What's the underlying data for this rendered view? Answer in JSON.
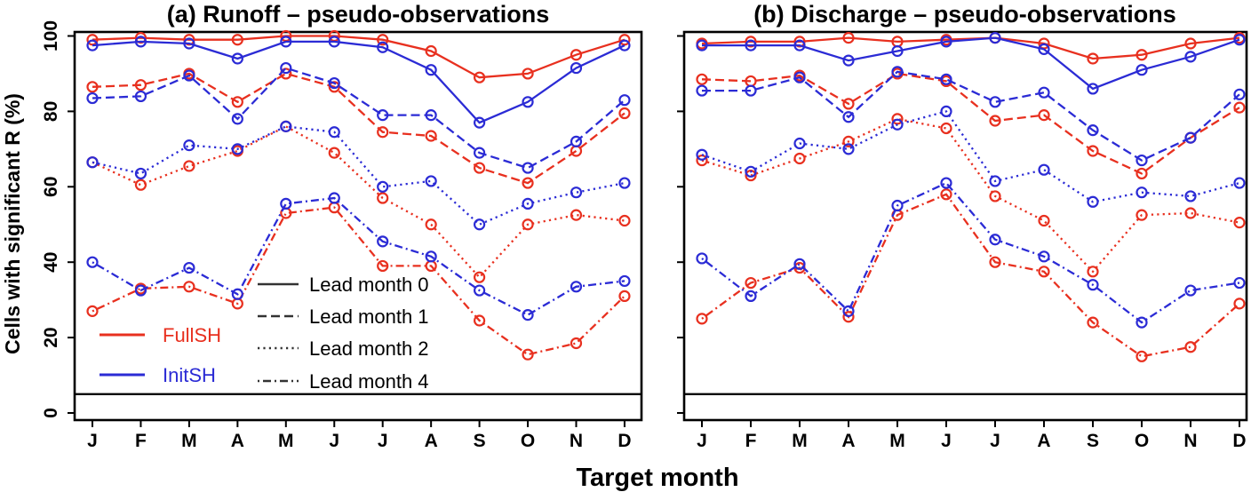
{
  "figure": {
    "y_axis_label": "Cells with significant R (%)",
    "x_axis_label": "Target month",
    "colors": {
      "fullsh": "#e8301f",
      "initsh": "#2b2bd5",
      "axis": "#000000",
      "background": "#ffffff"
    },
    "legend": {
      "series": [
        {
          "label": "FullSH",
          "color": "#e8301f"
        },
        {
          "label": "InitSH",
          "color": "#2b2bd5"
        }
      ],
      "lead_months": [
        {
          "label": "Lead month 0",
          "style": "solid"
        },
        {
          "label": "Lead month 1",
          "style": "dashed"
        },
        {
          "label": "Lead month 2",
          "style": "dotted"
        },
        {
          "label": "Lead month 4",
          "style": "dashdot"
        }
      ]
    }
  },
  "chart_data": [
    {
      "type": "line",
      "title": "(a) Runoff – pseudo-observations",
      "x_categories": [
        "J",
        "F",
        "M",
        "A",
        "M",
        "J",
        "J",
        "A",
        "S",
        "O",
        "N",
        "D"
      ],
      "ylim": [
        0,
        100
      ],
      "yticks": [
        0,
        20,
        40,
        60,
        80,
        100
      ],
      "y_tick_labels_visible": true,
      "threshold": 5,
      "marker": "open-circle",
      "series": [
        {
          "name": "fullsh-lead0",
          "legend": "FullSH lead 0",
          "color": "#e8301f",
          "dash": "solid",
          "values": [
            99,
            99.5,
            99,
            99,
            100,
            100,
            99,
            96,
            89,
            90,
            95,
            99
          ]
        },
        {
          "name": "initsh-lead0",
          "legend": "InitSH lead 0",
          "color": "#2b2bd5",
          "dash": "solid",
          "values": [
            97.5,
            98.5,
            98,
            94,
            98.5,
            98.5,
            97,
            91,
            77,
            82.5,
            91.5,
            97.5
          ]
        },
        {
          "name": "fullsh-lead1",
          "legend": "FullSH lead 1",
          "color": "#e8301f",
          "dash": "dashed",
          "values": [
            86.5,
            87,
            90,
            82.5,
            90,
            86.5,
            74.5,
            73.5,
            65,
            61,
            69.5,
            79.5
          ]
        },
        {
          "name": "initsh-lead1",
          "legend": "InitSH lead 1",
          "color": "#2b2bd5",
          "dash": "dashed",
          "values": [
            83.5,
            84,
            89.5,
            78,
            91.5,
            87.5,
            79,
            79,
            69,
            65,
            72,
            83
          ]
        },
        {
          "name": "fullsh-lead2",
          "legend": "FullSH lead 2",
          "color": "#e8301f",
          "dash": "dotted",
          "values": [
            66.5,
            60.5,
            65.5,
            69.5,
            76,
            69,
            57,
            50,
            36,
            50,
            52.5,
            51
          ]
        },
        {
          "name": "initsh-lead2",
          "legend": "InitSH lead 2",
          "color": "#2b2bd5",
          "dash": "dotted",
          "values": [
            66.5,
            63.5,
            71,
            70,
            76,
            74.5,
            60,
            61.5,
            50,
            55.5,
            58.5,
            61
          ]
        },
        {
          "name": "fullsh-lead4",
          "legend": "FullSH lead 4",
          "color": "#e8301f",
          "dash": "dashdot",
          "values": [
            27,
            33,
            33.5,
            29,
            53,
            54.5,
            39,
            39,
            24.5,
            15.5,
            18.5,
            31
          ]
        },
        {
          "name": "initsh-lead4",
          "legend": "InitSH lead 4",
          "color": "#2b2bd5",
          "dash": "dashdot",
          "values": [
            40,
            32.5,
            38.5,
            31.5,
            55.5,
            57,
            45.5,
            41.5,
            32.5,
            26,
            33.5,
            35
          ]
        }
      ]
    },
    {
      "type": "line",
      "title": "(b) Discharge – pseudo-observations",
      "x_categories": [
        "J",
        "F",
        "M",
        "A",
        "M",
        "J",
        "J",
        "A",
        "S",
        "O",
        "N",
        "D"
      ],
      "ylim": [
        0,
        100
      ],
      "yticks": [
        0,
        20,
        40,
        60,
        80,
        100
      ],
      "y_tick_labels_visible": false,
      "threshold": 5,
      "marker": "open-circle",
      "series": [
        {
          "name": "fullsh-lead0",
          "legend": "FullSH lead 0",
          "color": "#e8301f",
          "dash": "solid",
          "values": [
            98,
            98.5,
            98.5,
            99.5,
            98.5,
            99,
            99.5,
            98,
            94,
            95,
            98,
            99.5
          ]
        },
        {
          "name": "initsh-lead0",
          "legend": "InitSH lead 0",
          "color": "#2b2bd5",
          "dash": "solid",
          "values": [
            97.5,
            97.5,
            97.5,
            93.5,
            96,
            98.5,
            99.5,
            96.5,
            86,
            91,
            94.5,
            99
          ]
        },
        {
          "name": "fullsh-lead1",
          "legend": "FullSH lead 1",
          "color": "#e8301f",
          "dash": "dashed",
          "values": [
            88.5,
            88,
            89.5,
            82,
            90,
            88,
            77.5,
            79,
            69.5,
            63.5,
            73,
            81
          ]
        },
        {
          "name": "initsh-lead1",
          "legend": "InitSH lead 1",
          "color": "#2b2bd5",
          "dash": "dashed",
          "values": [
            85.5,
            85.5,
            89,
            78.5,
            90.5,
            88.5,
            82.5,
            85,
            75,
            67,
            73,
            84.5
          ]
        },
        {
          "name": "fullsh-lead2",
          "legend": "FullSH lead 2",
          "color": "#e8301f",
          "dash": "dotted",
          "values": [
            67,
            63,
            67.5,
            72,
            78,
            75.5,
            57.5,
            51,
            37.5,
            52.5,
            53,
            50.5
          ]
        },
        {
          "name": "initsh-lead2",
          "legend": "InitSH lead 2",
          "color": "#2b2bd5",
          "dash": "dotted",
          "values": [
            68.5,
            64,
            71.5,
            70,
            76.5,
            80,
            61.5,
            64.5,
            56,
            58.5,
            57.5,
            61
          ]
        },
        {
          "name": "fullsh-lead4",
          "legend": "FullSH lead 4",
          "color": "#e8301f",
          "dash": "dashdot",
          "values": [
            25,
            34.5,
            38.5,
            25.5,
            52.5,
            58,
            40,
            37.5,
            24,
            15,
            17.5,
            29
          ]
        },
        {
          "name": "initsh-lead4",
          "legend": "InitSH lead 4",
          "color": "#2b2bd5",
          "dash": "dashdot",
          "values": [
            41,
            31,
            39.5,
            27,
            55,
            61,
            46,
            41.5,
            34,
            24,
            32.5,
            34.5
          ]
        }
      ]
    }
  ]
}
